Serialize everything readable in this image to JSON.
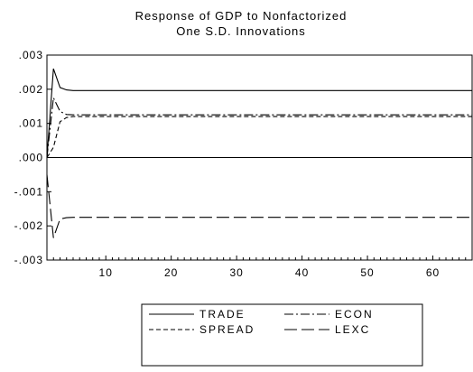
{
  "chart_data": {
    "type": "line",
    "title": "Response of GDP to Nonfactorized\nOne S.D. Innovations",
    "xlabel": "",
    "ylabel": "",
    "xlim": [
      1,
      66
    ],
    "ylim": [
      -0.003,
      0.003
    ],
    "xticks": [
      10,
      20,
      30,
      40,
      50,
      60
    ],
    "yticks": [
      ".003",
      ".002",
      ".001",
      ".000",
      "-.001",
      "-.002",
      "-.003"
    ],
    "ytick_values": [
      0.003,
      0.002,
      0.001,
      0.0,
      -0.001,
      -0.002,
      -0.003
    ],
    "zero_line": true,
    "grid": false,
    "legend_position": "bottom-center",
    "series": [
      {
        "name": "TRADE",
        "dash": "solid",
        "points": [
          [
            1,
            0.0
          ],
          [
            2,
            0.0026
          ],
          [
            3,
            0.00205
          ],
          [
            4,
            0.00198
          ],
          [
            5,
            0.00196
          ],
          [
            6,
            0.00196
          ],
          [
            66,
            0.00196
          ]
        ]
      },
      {
        "name": "ECON",
        "dash": "dashdot",
        "points": [
          [
            1,
            0.0
          ],
          [
            2,
            0.00175
          ],
          [
            3,
            0.00135
          ],
          [
            4,
            0.00126
          ],
          [
            5,
            0.00125
          ],
          [
            6,
            0.00125
          ],
          [
            66,
            0.00125
          ]
        ]
      },
      {
        "name": "SPREAD",
        "dash": "short",
        "points": [
          [
            1,
            0.0
          ],
          [
            2,
            0.0003
          ],
          [
            3,
            0.00105
          ],
          [
            4,
            0.00117
          ],
          [
            5,
            0.0012
          ],
          [
            6,
            0.0012
          ],
          [
            66,
            0.0012
          ]
        ]
      },
      {
        "name": "LEXC",
        "dash": "long",
        "points": [
          [
            1,
            -0.0005
          ],
          [
            2,
            -0.00235
          ],
          [
            3,
            -0.0018
          ],
          [
            4,
            -0.00176
          ],
          [
            5,
            -0.00175
          ],
          [
            6,
            -0.00175
          ],
          [
            66,
            -0.00175
          ]
        ]
      }
    ]
  }
}
